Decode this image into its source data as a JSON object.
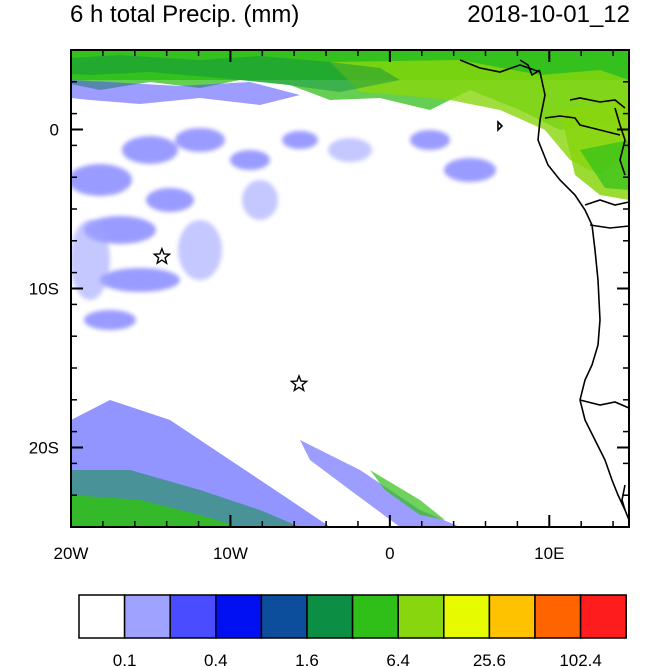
{
  "header": {
    "title": "6 h total Precip. (mm)",
    "timestamp": "2018-10-01_12"
  },
  "map": {
    "lon_range": [
      -20,
      15
    ],
    "lat_range": [
      -25,
      5
    ],
    "x_ticks": [
      {
        "lon": -20,
        "label": "20W"
      },
      {
        "lon": -10,
        "label": "10W"
      },
      {
        "lon": 0,
        "label": "0"
      },
      {
        "lon": 10,
        "label": "10E"
      }
    ],
    "y_ticks": [
      {
        "lat": 0,
        "label": "0"
      },
      {
        "lat": -10,
        "label": "10S"
      },
      {
        "lat": -20,
        "label": "20S"
      }
    ],
    "markers": [
      {
        "name": "star-marker-1",
        "lon": -14.3,
        "lat": -8.0
      },
      {
        "name": "star-marker-2",
        "lon": -5.7,
        "lat": -16.0
      }
    ]
  },
  "colorbar": {
    "colors": [
      "#ffffff",
      "#9fa3ff",
      "#4a4cff",
      "#0010f0",
      "#0c4d9c",
      "#0c8f44",
      "#30bf18",
      "#88d60e",
      "#e6fa00",
      "#ffc200",
      "#ff6400",
      "#ff1c1c"
    ],
    "labels": [
      {
        "after_box": 1,
        "text": "0.1"
      },
      {
        "after_box": 3,
        "text": "0.4"
      },
      {
        "after_box": 5,
        "text": "1.6"
      },
      {
        "after_box": 7,
        "text": "6.4"
      },
      {
        "after_box": 9,
        "text": "25.6"
      },
      {
        "after_box": 11,
        "text": "102.4"
      }
    ]
  }
}
